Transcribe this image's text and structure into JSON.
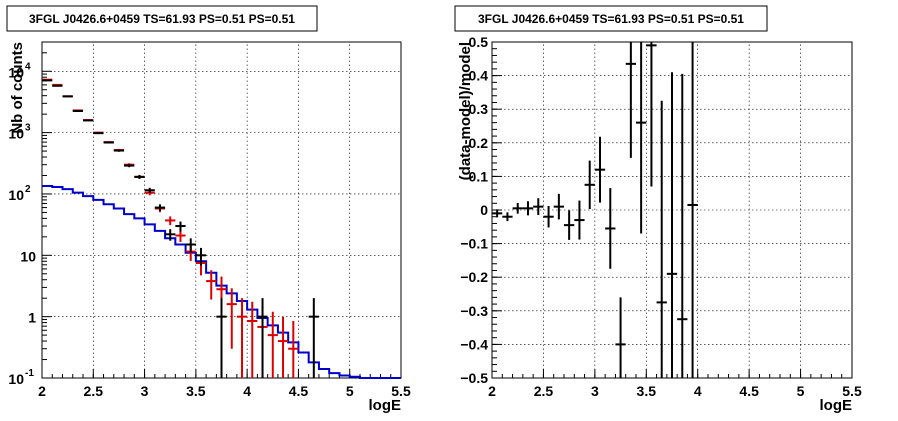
{
  "chart_data": [
    {
      "type": "line",
      "title": "3FGL J0426.6+0459 TS=61.93 PS=0.51 PS=0.51",
      "xlabel": "logE",
      "ylabel": "Nb of counts",
      "xlim": [
        2,
        5.5
      ],
      "ylim": [
        0.1,
        30000
      ],
      "yscale": "log",
      "grid": true,
      "x_ticks": [
        "2",
        "2.5",
        "3",
        "3.5",
        "4",
        "4.5",
        "5",
        "5.5"
      ],
      "y_ticks": [
        {
          "value": 0.1,
          "base": "10",
          "exp": "-1"
        },
        {
          "value": 1,
          "base": "1",
          "exp": ""
        },
        {
          "value": 10,
          "base": "10",
          "exp": ""
        },
        {
          "value": 100,
          "base": "10",
          "exp": "2"
        },
        {
          "value": 1000,
          "base": "10",
          "exp": "3"
        },
        {
          "value": 10000,
          "base": "10",
          "exp": "4"
        }
      ],
      "bin_width": 0.1,
      "colors": {
        "data": "#000000",
        "model": "#dd0000",
        "background": "#0000cc"
      },
      "series": [
        {
          "role": "background",
          "x": [
            2.05,
            2.15,
            2.25,
            2.35,
            2.45,
            2.55,
            2.65,
            2.75,
            2.85,
            2.95,
            3.05,
            3.15,
            3.25,
            3.35,
            3.45,
            3.55,
            3.65,
            3.75,
            3.85,
            3.95,
            4.05,
            4.15,
            4.25,
            4.35,
            4.45,
            4.55,
            4.65,
            4.75,
            4.85,
            4.95,
            5.05,
            5.15,
            5.25,
            5.35,
            5.45
          ],
          "values": [
            135,
            130,
            120,
            105,
            92,
            80,
            68,
            58,
            47,
            40,
            32,
            25,
            19,
            15,
            11,
            8,
            5.2,
            3.2,
            2.4,
            1.8,
            1.3,
            0.95,
            0.72,
            0.55,
            0.38,
            0.26,
            0.18,
            0.14,
            0.12,
            0.11,
            0.105,
            0.1,
            0.1,
            0.1,
            0.1
          ]
        },
        {
          "role": "model",
          "x": [
            2.05,
            2.15,
            2.25,
            2.35,
            2.45,
            2.55,
            2.65,
            2.75,
            2.85,
            2.95,
            3.05,
            3.15,
            3.25,
            3.35,
            3.45,
            3.55,
            3.65,
            3.75,
            3.85,
            3.95,
            4.05,
            4.15,
            4.25,
            4.35,
            4.45
          ],
          "values": [
            7300,
            6000,
            3900,
            2300,
            1600,
            1000,
            700,
            520,
            300,
            190,
            105,
            58,
            37,
            21,
            11.5,
            7.5,
            3.8,
            2.8,
            1.6,
            1.0,
            0.85,
            0.68,
            0.5,
            0.4,
            0.3
          ],
          "errors": [
            80,
            75,
            60,
            48,
            40,
            32,
            26,
            23,
            17,
            14,
            10,
            7.5,
            6,
            4.5,
            3.4,
            2.8,
            1.9,
            1.7,
            1.3,
            1.0,
            0.9,
            0.8,
            0.7,
            0.6,
            0.55
          ]
        },
        {
          "role": "data",
          "x": [
            2.05,
            2.15,
            2.25,
            2.35,
            2.45,
            2.55,
            2.65,
            2.75,
            2.85,
            2.95,
            3.05,
            3.15,
            3.25,
            3.35,
            3.45,
            3.55,
            3.75,
            4.15,
            4.65
          ],
          "values": [
            7100,
            5800,
            3900,
            2250,
            1580,
            980,
            690,
            510,
            290,
            190,
            115,
            60,
            22,
            30,
            15,
            10,
            1,
            1,
            1
          ],
          "errors": [
            84,
            76,
            62,
            47,
            40,
            31,
            26,
            23,
            17,
            14,
            11,
            7.7,
            4.7,
            5.5,
            3.9,
            3.2,
            1,
            1,
            1
          ]
        }
      ]
    },
    {
      "type": "scatter",
      "title": "3FGL J0426.6+0459 TS=61.93 PS=0.51 PS=0.51",
      "xlabel": "logE",
      "ylabel": "(data-model)/model",
      "xlim": [
        2,
        5.5
      ],
      "ylim": [
        -0.5,
        0.5
      ],
      "grid": true,
      "x_ticks": [
        "2",
        "2.5",
        "3",
        "3.5",
        "4",
        "4.5",
        "5",
        "5.5"
      ],
      "y_ticks": [
        "−0.5",
        "−0.4",
        "−0.3",
        "−0.2",
        "−0.1",
        "0",
        "0.1",
        "0.2",
        "0.3",
        "0.4",
        "0.5"
      ],
      "y_tick_values": [
        -0.5,
        -0.4,
        -0.3,
        -0.2,
        -0.1,
        0,
        0.1,
        0.2,
        0.3,
        0.4,
        0.5
      ],
      "bin_width": 0.1,
      "series": [
        {
          "role": "residuals",
          "x": [
            2.05,
            2.15,
            2.25,
            2.35,
            2.45,
            2.55,
            2.65,
            2.75,
            2.85,
            2.95,
            3.05,
            3.15,
            3.25,
            3.35,
            3.45,
            3.55,
            3.65,
            3.75,
            3.85,
            3.95
          ],
          "values": [
            -0.01,
            -0.02,
            0.005,
            0.005,
            0.01,
            -0.02,
            0.01,
            -0.045,
            -0.03,
            0.075,
            0.12,
            -0.055,
            -0.4,
            0.435,
            0.26,
            0.49,
            -0.275,
            -0.19,
            -0.325,
            0.015
          ],
          "errors": [
            0.012,
            0.013,
            0.016,
            0.021,
            0.025,
            0.032,
            0.038,
            0.044,
            0.058,
            0.072,
            0.098,
            0.12,
            0.14,
            0.28,
            0.33,
            0.42,
            0.6,
            0.6,
            0.73,
            1.0
          ]
        }
      ]
    }
  ]
}
